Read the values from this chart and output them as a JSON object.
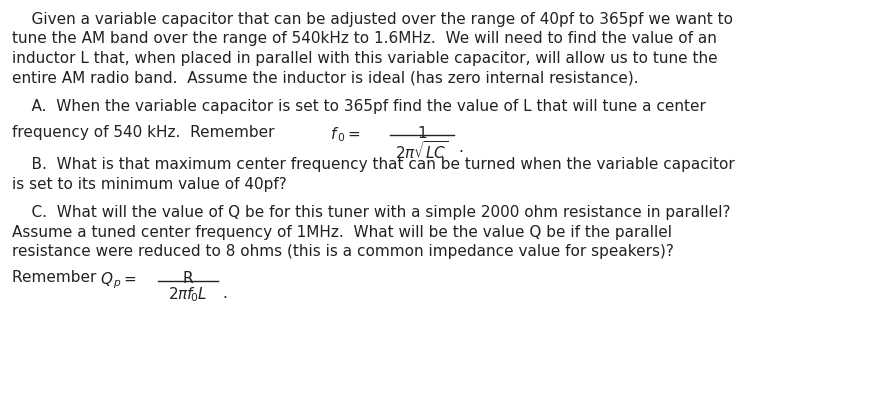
{
  "background_color": "#ffffff",
  "figsize": [
    8.96,
    4.06
  ],
  "dpi": 100,
  "intro_line1": "    Given a variable capacitor that can be adjusted over the range of 40pf to 365pf we want to",
  "intro_line2": "tune the AM band over the range of 540kHz to 1.6MHz.  We will need to find the value of an",
  "intro_line3": "inductor L that, when placed in parallel with this variable capacitor, will allow us to tune the",
  "intro_line4": "entire AM radio band.  Assume the inductor is ideal (has zero internal resistance).",
  "partA_line1": "    A.  When the variable capacitor is set to 365pf find the value of L that will tune a center",
  "partA_line2_left": "frequency of 540 kHz.  Remember  ",
  "partB_line1": "    B.  What is that maximum center frequency that can be turned when the variable capacitor",
  "partB_line2": "is set to its minimum value of 40pf?",
  "partC_line1": "    C.  What will the value of Q be for this tuner with a simple 2000 ohm resistance in parallel?",
  "partC_line2": "Assume a tuned center frequency of 1MHz.  What will be the value Q be if the parallel",
  "partC_line3": "resistance were reduced to 8 ohms (this is a common impedance value for speakers)?",
  "partC_remember": "Remember  ",
  "font_size": 11.0,
  "text_color": "#222222",
  "font_family": "DejaVu Sans"
}
